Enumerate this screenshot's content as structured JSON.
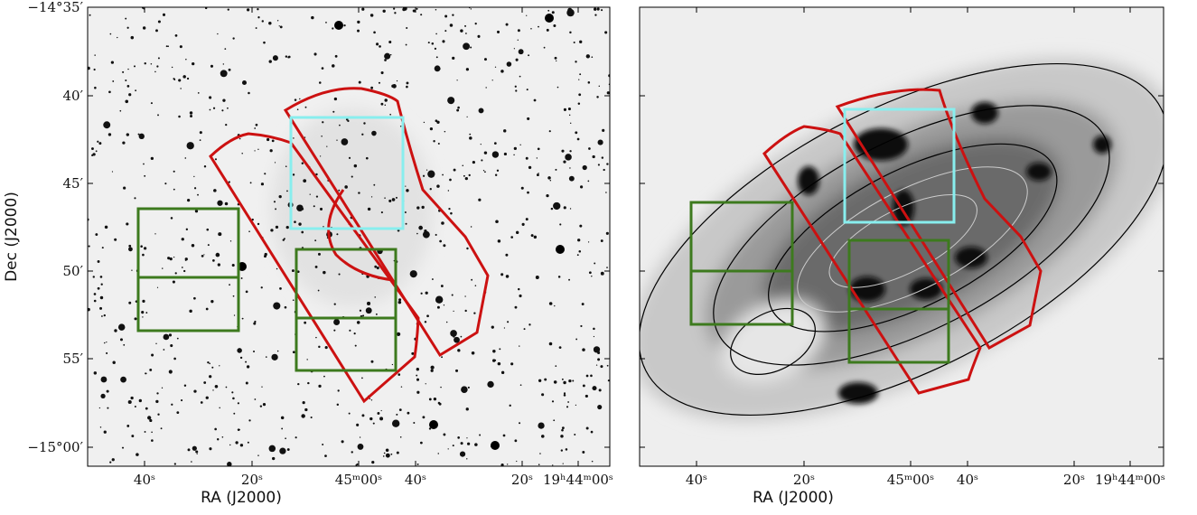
{
  "panels": [
    {
      "y_axis_label": "Dec (J2000)",
      "yticks": [
        "−14°35′",
        "40′",
        "45′",
        "50′",
        "55′",
        "−15°00′"
      ],
      "x_axis_label": "RA (J2000)",
      "xticks": [
        "40ˢ",
        "20ˢ",
        "45ᵐ00ˢ",
        "40ˢ",
        "20ˢ",
        "19ʰ44ᵐ00ˢ"
      ]
    },
    {
      "x_axis_label": "RA (J2000)",
      "xticks": [
        "40ˢ",
        "20ˢ",
        "45ᵐ00ˢ",
        "40ˢ",
        "20ˢ",
        "19ʰ44ᵐ00ˢ"
      ]
    }
  ]
}
